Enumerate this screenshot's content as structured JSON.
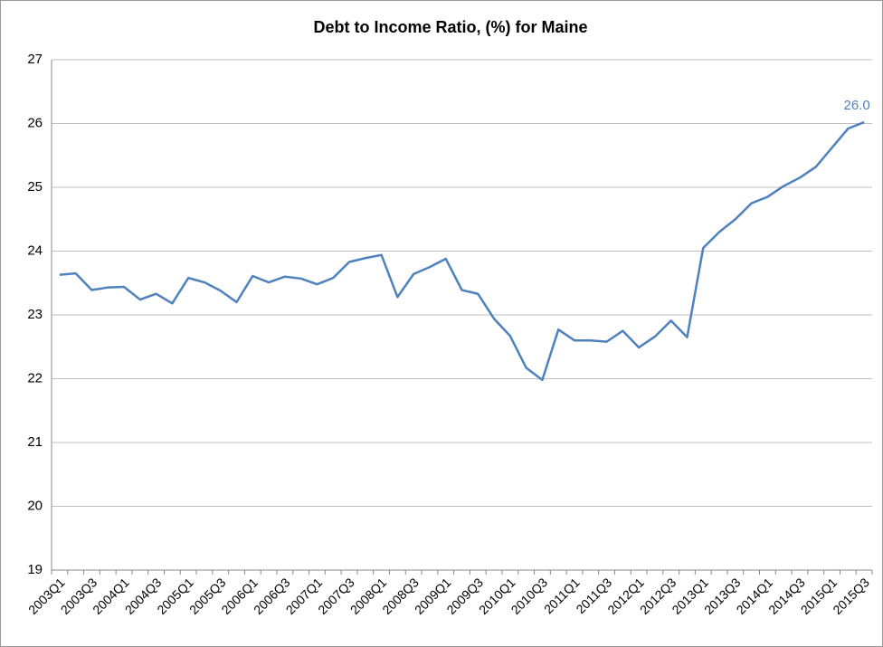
{
  "chart_data": {
    "type": "line",
    "title": "Debt to Income Ratio, (%) for Maine",
    "categories": [
      "2003Q1",
      null,
      "2003Q3",
      null,
      "2004Q1",
      null,
      "2004Q3",
      null,
      "2005Q1",
      null,
      "2005Q3",
      null,
      "2006Q1",
      null,
      "2006Q3",
      null,
      "2007Q1",
      null,
      "2007Q3",
      null,
      "2008Q1",
      null,
      "2008Q3",
      null,
      "2009Q1",
      null,
      "2009Q3",
      null,
      "2010Q1",
      null,
      "2010Q3",
      null,
      "2011Q1",
      null,
      "2011Q3",
      null,
      "2012Q1",
      null,
      "2012Q3",
      null,
      "2013Q1",
      null,
      "2013Q3",
      null,
      "2014Q1",
      null,
      "2014Q3",
      null,
      "2015Q1",
      null,
      "2015Q3"
    ],
    "values": [
      23.63,
      23.65,
      23.39,
      23.43,
      23.44,
      23.24,
      23.33,
      23.18,
      23.58,
      23.51,
      23.38,
      23.2,
      23.61,
      23.51,
      23.6,
      23.57,
      23.48,
      23.58,
      23.83,
      23.89,
      23.94,
      23.28,
      23.64,
      23.75,
      23.88,
      23.39,
      23.33,
      22.94,
      22.67,
      22.17,
      21.98,
      22.77,
      22.6,
      22.6,
      22.58,
      22.75,
      22.49,
      22.66,
      22.91,
      22.65,
      24.05,
      24.3,
      24.5,
      24.75,
      24.85,
      25.02,
      25.15,
      25.32,
      25.62,
      25.92,
      26.02
    ],
    "value_labels": [
      null,
      null,
      null,
      null,
      null,
      null,
      null,
      null,
      null,
      null,
      null,
      null,
      null,
      null,
      null,
      null,
      null,
      null,
      null,
      null,
      null,
      null,
      null,
      null,
      null,
      null,
      null,
      null,
      null,
      null,
      null,
      null,
      null,
      null,
      null,
      null,
      null,
      null,
      null,
      null,
      null,
      null,
      null,
      null,
      null,
      null,
      null,
      null,
      null,
      null,
      "26.0"
    ],
    "color": "#4f81bd",
    "ylim": [
      19,
      27
    ],
    "yticks": [
      19,
      20,
      21,
      22,
      23,
      24,
      25,
      26,
      27
    ],
    "grid": true
  }
}
